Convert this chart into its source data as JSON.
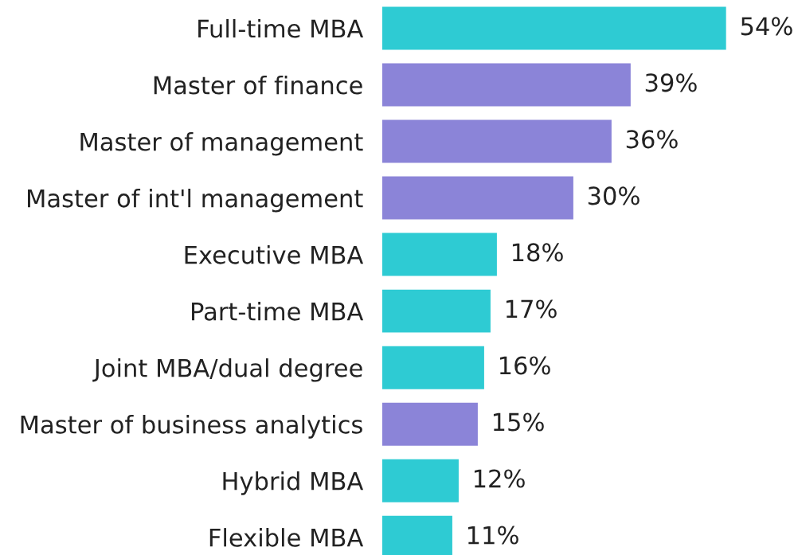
{
  "chart_data": {
    "type": "bar",
    "orientation": "horizontal",
    "categories": [
      "Full-time MBA",
      "Master of finance",
      "Master of management",
      "Master of int'l management",
      "Executive MBA",
      "Part-time MBA",
      "Joint MBA/dual degree",
      "Master of business analytics",
      "Hybrid MBA",
      "Flexible MBA"
    ],
    "values": [
      54,
      39,
      36,
      30,
      18,
      17,
      16,
      15,
      12,
      11
    ],
    "colors": [
      "#2ecbd3",
      "#8b84d8",
      "#8b84d8",
      "#8b84d8",
      "#2ecbd3",
      "#2ecbd3",
      "#2ecbd3",
      "#8b84d8",
      "#2ecbd3",
      "#2ecbd3"
    ],
    "value_labels": [
      "54%",
      "39%",
      "36%",
      "30%",
      "18%",
      "17%",
      "16%",
      "15%",
      "12%",
      "11%"
    ],
    "tick_labels": "y",
    "grid": false
  }
}
